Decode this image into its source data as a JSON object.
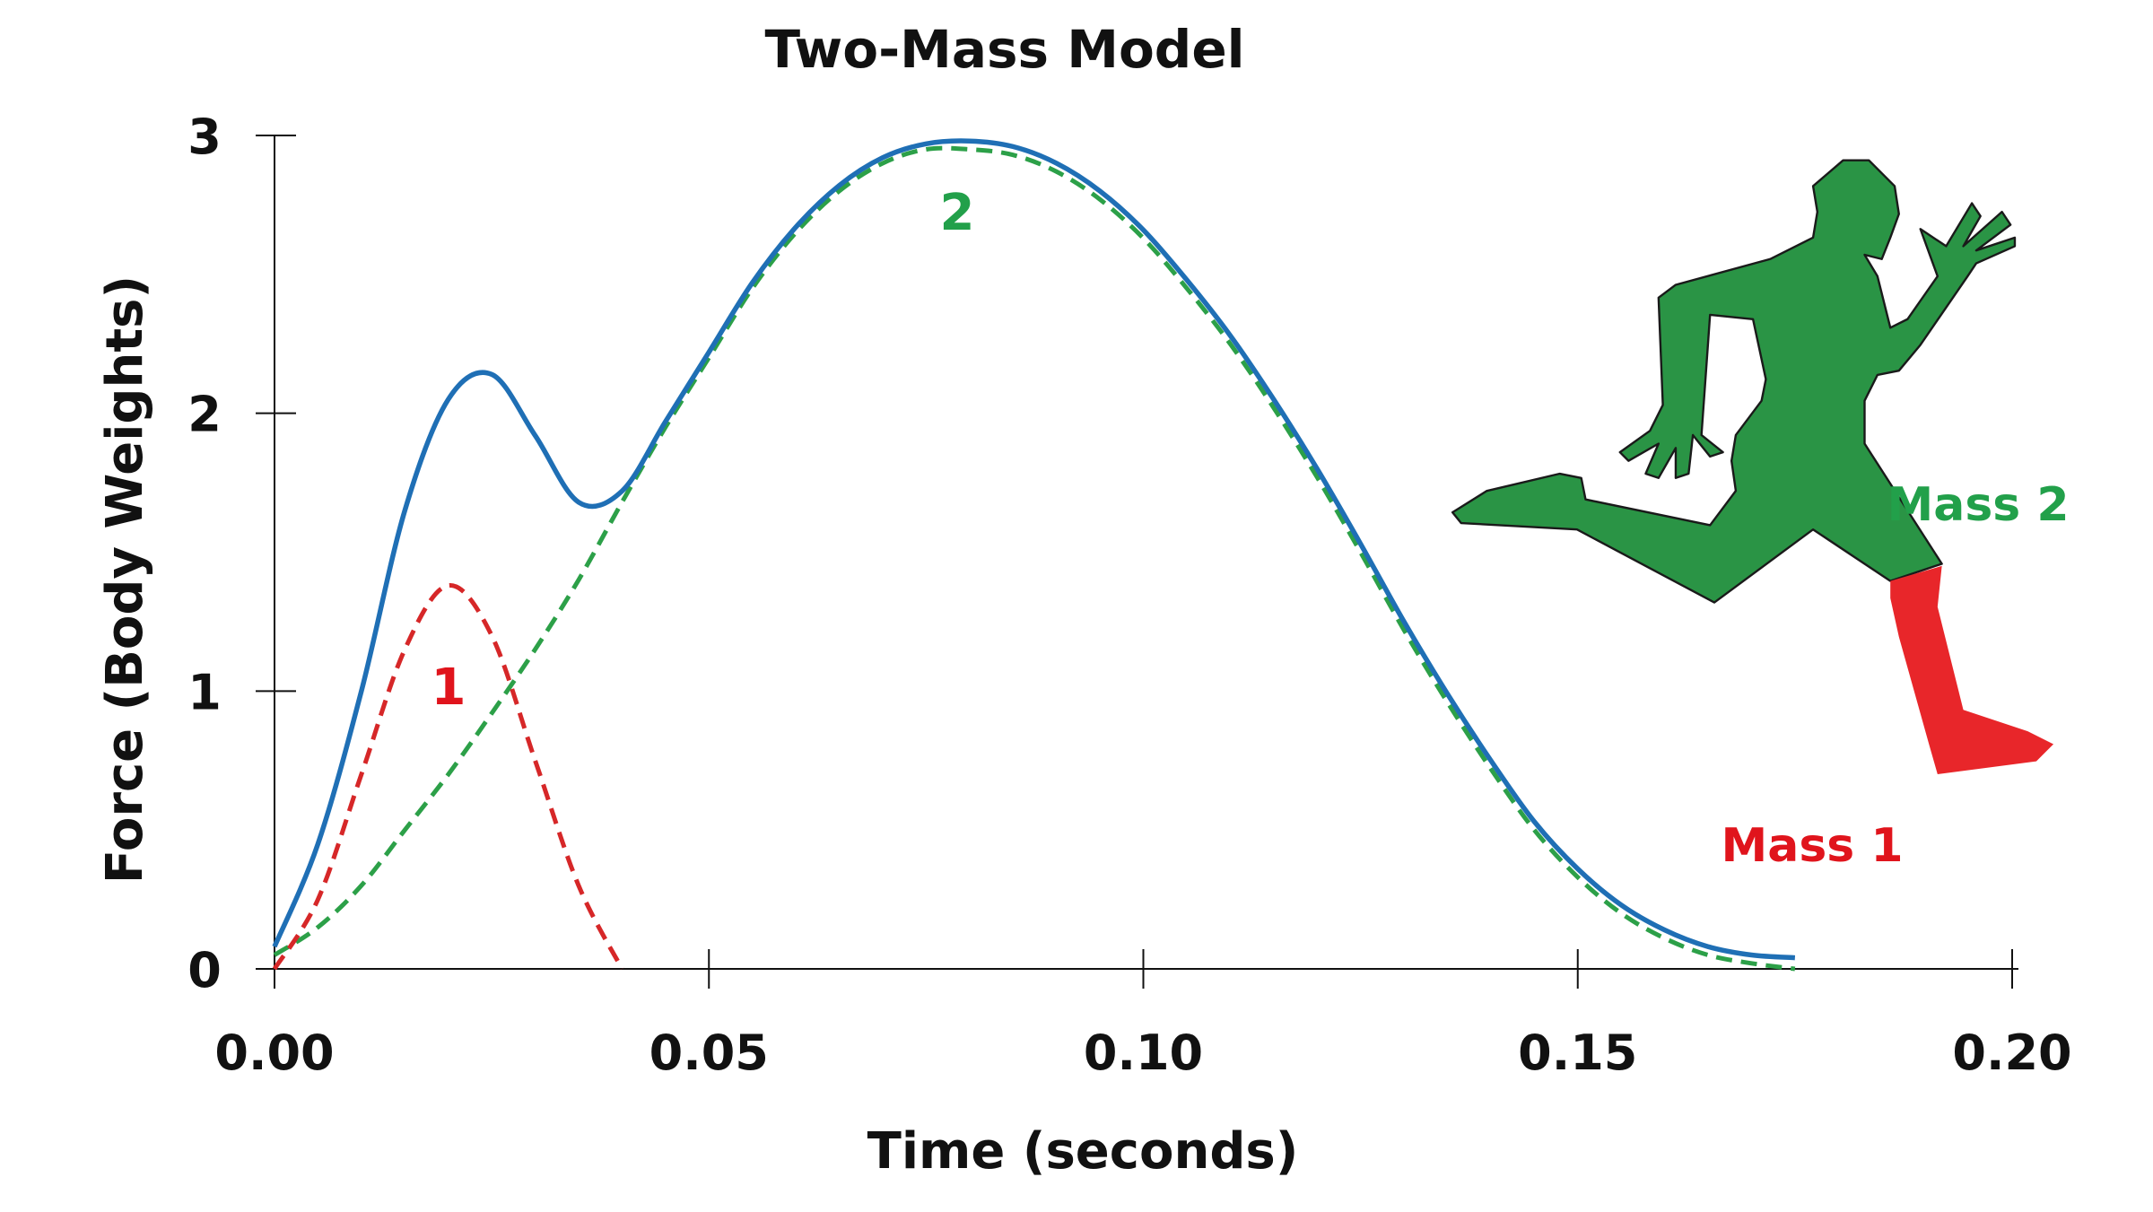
{
  "chart_data": {
    "type": "line",
    "title": "Two-Mass Model",
    "xlabel": "Time (seconds)",
    "ylabel": "Force (Body Weights)",
    "xlim": [
      0,
      0.2
    ],
    "ylim": [
      0,
      3
    ],
    "x_ticks": [
      "0.00",
      "0.05",
      "0.10",
      "0.15",
      "0.20"
    ],
    "y_ticks": [
      "0",
      "1",
      "2",
      "3"
    ],
    "grid": false,
    "series": [
      {
        "id": "total",
        "color": "#1f6fb5",
        "style": "solid",
        "x": [
          0,
          0.005,
          0.01,
          0.015,
          0.02,
          0.025,
          0.03,
          0.035,
          0.04,
          0.045,
          0.05,
          0.055,
          0.06,
          0.065,
          0.07,
          0.075,
          0.08,
          0.085,
          0.09,
          0.095,
          0.1,
          0.105,
          0.11,
          0.115,
          0.12,
          0.125,
          0.13,
          0.135,
          0.14,
          0.145,
          0.15,
          0.155,
          0.16,
          0.165,
          0.17,
          0.175
        ],
        "y": [
          0.08,
          0.45,
          1.0,
          1.65,
          2.05,
          2.14,
          1.92,
          1.68,
          1.72,
          1.97,
          2.22,
          2.47,
          2.67,
          2.82,
          2.92,
          2.97,
          2.98,
          2.96,
          2.9,
          2.8,
          2.66,
          2.48,
          2.28,
          2.05,
          1.8,
          1.53,
          1.25,
          0.99,
          0.75,
          0.53,
          0.36,
          0.23,
          0.14,
          0.08,
          0.05,
          0.04
        ]
      },
      {
        "id": "mass1",
        "label": "1",
        "color": "#d62728",
        "style": "dashed",
        "x": [
          0,
          0.005,
          0.01,
          0.015,
          0.02,
          0.025,
          0.03,
          0.035,
          0.04
        ],
        "y": [
          0,
          0.25,
          0.7,
          1.15,
          1.38,
          1.2,
          0.75,
          0.3,
          0
        ]
      },
      {
        "id": "mass2",
        "label": "2",
        "color": "#2ca048",
        "style": "dashed",
        "x": [
          0,
          0.005,
          0.01,
          0.015,
          0.02,
          0.025,
          0.03,
          0.035,
          0.04,
          0.045,
          0.05,
          0.055,
          0.06,
          0.065,
          0.07,
          0.075,
          0.08,
          0.085,
          0.09,
          0.095,
          0.1,
          0.105,
          0.11,
          0.115,
          0.12,
          0.125,
          0.13,
          0.135,
          0.14,
          0.145,
          0.15,
          0.155,
          0.16,
          0.165,
          0.17,
          0.175
        ],
        "y": [
          0.05,
          0.15,
          0.3,
          0.5,
          0.7,
          0.92,
          1.15,
          1.4,
          1.68,
          1.95,
          2.2,
          2.45,
          2.65,
          2.8,
          2.9,
          2.95,
          2.95,
          2.93,
          2.87,
          2.77,
          2.63,
          2.45,
          2.25,
          2.02,
          1.77,
          1.5,
          1.22,
          0.96,
          0.72,
          0.5,
          0.33,
          0.2,
          0.11,
          0.05,
          0.02,
          0
        ]
      }
    ],
    "annotations": {
      "mass1_curve_label": "1",
      "mass2_curve_label": "2",
      "mass1_figure_label": "Mass 1",
      "mass2_figure_label": "Mass 2"
    },
    "figure": {
      "icon": "running-man-icon",
      "body_color": "#2a9445",
      "lower_leg_color": "#e8262a"
    }
  }
}
